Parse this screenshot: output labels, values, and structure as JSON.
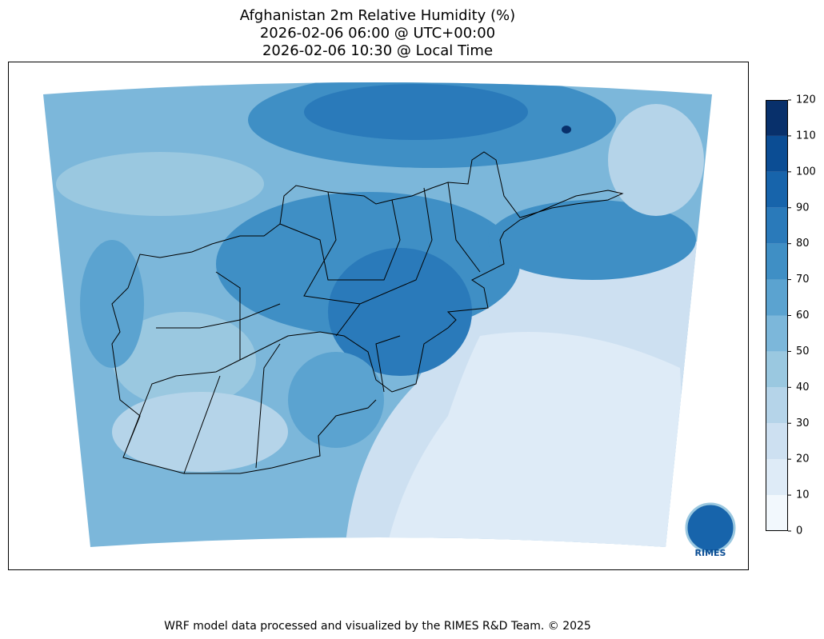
{
  "title": [
    "Afghanistan 2m Relative Humidity (%)",
    "2026-02-06 06:00 @ UTC+00:00",
    "2026-02-06 10:30 @ Local Time"
  ],
  "colorbar": {
    "ticks": [
      0,
      10,
      20,
      30,
      40,
      50,
      60,
      70,
      80,
      90,
      100,
      110,
      120
    ],
    "colors": [
      "#f2f8fd",
      "#deebf7",
      "#cde0f1",
      "#b5d4e9",
      "#9ac8e0",
      "#7cb7da",
      "#5ba3d0",
      "#3f8fc5",
      "#2a7aba",
      "#1764ab",
      "#0b4d94",
      "#08306b"
    ]
  },
  "logo": "RIMES",
  "footer": "WRF model data processed and visualized by the RIMES R&D Team. © 2025"
}
